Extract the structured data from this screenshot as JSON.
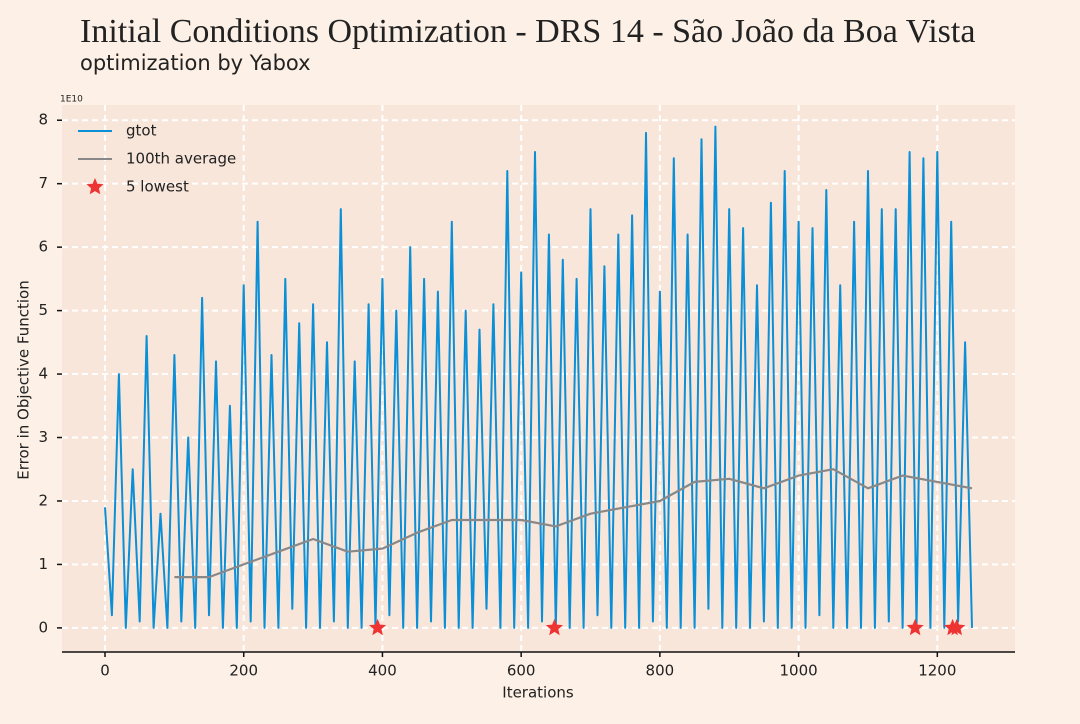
{
  "chart_data": {
    "type": "line",
    "title": "Initial Conditions Optimization - DRS 14 - São João da Boa Vista",
    "subtitle": "optimization by Yabox",
    "xlabel": "Iterations",
    "ylabel": "Error in Objective Function",
    "y_offset_label": "1E10",
    "xlim": [
      -62,
      1312
    ],
    "ylim": [
      -0.38,
      8.24
    ],
    "xticks": [
      0,
      200,
      400,
      600,
      800,
      1000,
      1200
    ],
    "yticks": [
      0,
      1,
      2,
      3,
      4,
      5,
      6,
      7,
      8
    ],
    "grid": true,
    "legend": "upper left",
    "series": [
      {
        "name": "gtot",
        "color": "#0b8fd6",
        "marker": "line",
        "x": [
          0,
          10,
          20,
          30,
          40,
          50,
          60,
          70,
          80,
          90,
          100,
          110,
          120,
          130,
          140,
          150,
          160,
          170,
          180,
          190,
          200,
          210,
          220,
          230,
          240,
          250,
          260,
          270,
          280,
          290,
          300,
          310,
          320,
          330,
          340,
          350,
          360,
          370,
          380,
          390,
          400,
          410,
          420,
          430,
          440,
          450,
          460,
          470,
          480,
          490,
          500,
          510,
          520,
          530,
          540,
          550,
          560,
          570,
          580,
          590,
          600,
          610,
          620,
          630,
          640,
          650,
          660,
          670,
          680,
          690,
          700,
          710,
          720,
          730,
          740,
          750,
          760,
          770,
          780,
          790,
          800,
          810,
          820,
          830,
          840,
          850,
          860,
          870,
          880,
          890,
          900,
          910,
          920,
          930,
          940,
          950,
          960,
          970,
          980,
          990,
          1000,
          1010,
          1020,
          1030,
          1040,
          1050,
          1060,
          1070,
          1080,
          1090,
          1100,
          1110,
          1120,
          1130,
          1140,
          1150,
          1160,
          1170,
          1180,
          1190,
          1200,
          1210,
          1220,
          1230,
          1240,
          1250
        ],
        "values": [
          1.9,
          0.2,
          4.0,
          0.0,
          2.5,
          0.1,
          4.6,
          0.0,
          1.8,
          0.0,
          4.3,
          0.1,
          3.0,
          0.0,
          5.2,
          0.2,
          4.2,
          0.0,
          3.5,
          0.0,
          5.4,
          0.1,
          6.4,
          0.0,
          4.3,
          0.0,
          5.5,
          0.3,
          4.8,
          0.0,
          5.1,
          0.0,
          4.5,
          0.1,
          6.6,
          0.0,
          4.2,
          0.0,
          5.1,
          0.0,
          5.5,
          0.2,
          5.0,
          0.0,
          6.0,
          0.0,
          5.5,
          0.1,
          5.3,
          0.0,
          6.4,
          0.0,
          5.0,
          0.0,
          4.7,
          0.3,
          5.1,
          0.0,
          7.2,
          0.0,
          5.6,
          0.0,
          7.5,
          0.1,
          6.2,
          0.0,
          5.8,
          0.0,
          5.5,
          0.0,
          6.6,
          0.2,
          5.7,
          0.0,
          6.2,
          0.0,
          6.5,
          0.0,
          7.8,
          0.1,
          5.3,
          0.0,
          7.4,
          0.0,
          6.2,
          0.0,
          7.7,
          0.3,
          7.9,
          0.0,
          6.6,
          0.0,
          6.3,
          0.0,
          5.4,
          0.1,
          6.7,
          0.0,
          7.2,
          0.0,
          6.4,
          0.0,
          6.3,
          0.2,
          6.9,
          0.0,
          5.4,
          0.0,
          6.4,
          0.0,
          7.2,
          0.0,
          6.6,
          0.1,
          6.6,
          0.0,
          7.5,
          0.0,
          7.4,
          0.0,
          7.5,
          0.0,
          6.4,
          0.1,
          4.5,
          0.0
        ]
      },
      {
        "name": "100th average",
        "color": "#888888",
        "marker": "line",
        "x": [
          100,
          150,
          200,
          250,
          300,
          350,
          400,
          450,
          500,
          550,
          600,
          650,
          700,
          750,
          800,
          850,
          900,
          950,
          1000,
          1050,
          1100,
          1150,
          1200,
          1250
        ],
        "values": [
          0.8,
          0.8,
          1.0,
          1.2,
          1.4,
          1.2,
          1.25,
          1.5,
          1.7,
          1.7,
          1.7,
          1.6,
          1.8,
          1.9,
          2.0,
          2.3,
          2.35,
          2.2,
          2.4,
          2.5,
          2.2,
          2.4,
          2.3,
          2.2
        ]
      },
      {
        "name": "5 lowest",
        "color": "#ee3333",
        "marker": "star",
        "x": [
          393,
          648,
          1168,
          1222,
          1228
        ],
        "values": [
          0,
          0,
          0,
          0,
          0
        ]
      }
    ]
  }
}
